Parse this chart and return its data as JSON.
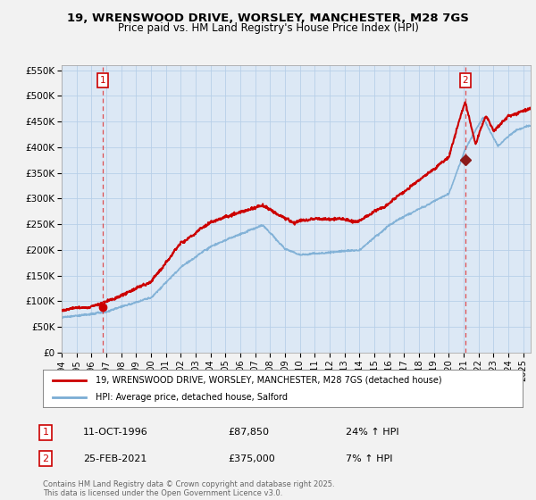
{
  "title1": "19, WRENSWOOD DRIVE, WORSLEY, MANCHESTER, M28 7GS",
  "title2": "Price paid vs. HM Land Registry's House Price Index (HPI)",
  "line1_color": "#cc0000",
  "line2_color": "#7aadd4",
  "background_color": "#f2f2f2",
  "plot_bg_color": "#dce8f5",
  "grid_color": "#b8cfe8",
  "yticks": [
    0,
    50000,
    100000,
    150000,
    200000,
    250000,
    300000,
    350000,
    400000,
    450000,
    500000,
    550000
  ],
  "ytick_labels": [
    "£0",
    "£50K",
    "£100K",
    "£150K",
    "£200K",
    "£250K",
    "£300K",
    "£350K",
    "£400K",
    "£450K",
    "£500K",
    "£550K"
  ],
  "annotation1_date": "11-OCT-1996",
  "annotation1_price": 87850,
  "annotation1_hpi": "24% ↑ HPI",
  "annotation2_date": "25-FEB-2021",
  "annotation2_price": 375000,
  "annotation2_hpi": "7% ↑ HPI",
  "legend_line1": "19, WRENSWOOD DRIVE, WORSLEY, MANCHESTER, M28 7GS (detached house)",
  "legend_line2": "HPI: Average price, detached house, Salford",
  "footnote": "Contains HM Land Registry data © Crown copyright and database right 2025.\nThis data is licensed under the Open Government Licence v3.0.",
  "purchase1_year": 1996.78,
  "purchase1_value": 87850,
  "purchase2_year": 2021.12,
  "purchase2_value": 375000,
  "xmin": 1994.0,
  "xmax": 2025.5,
  "ymin": 0,
  "ymax": 560000
}
